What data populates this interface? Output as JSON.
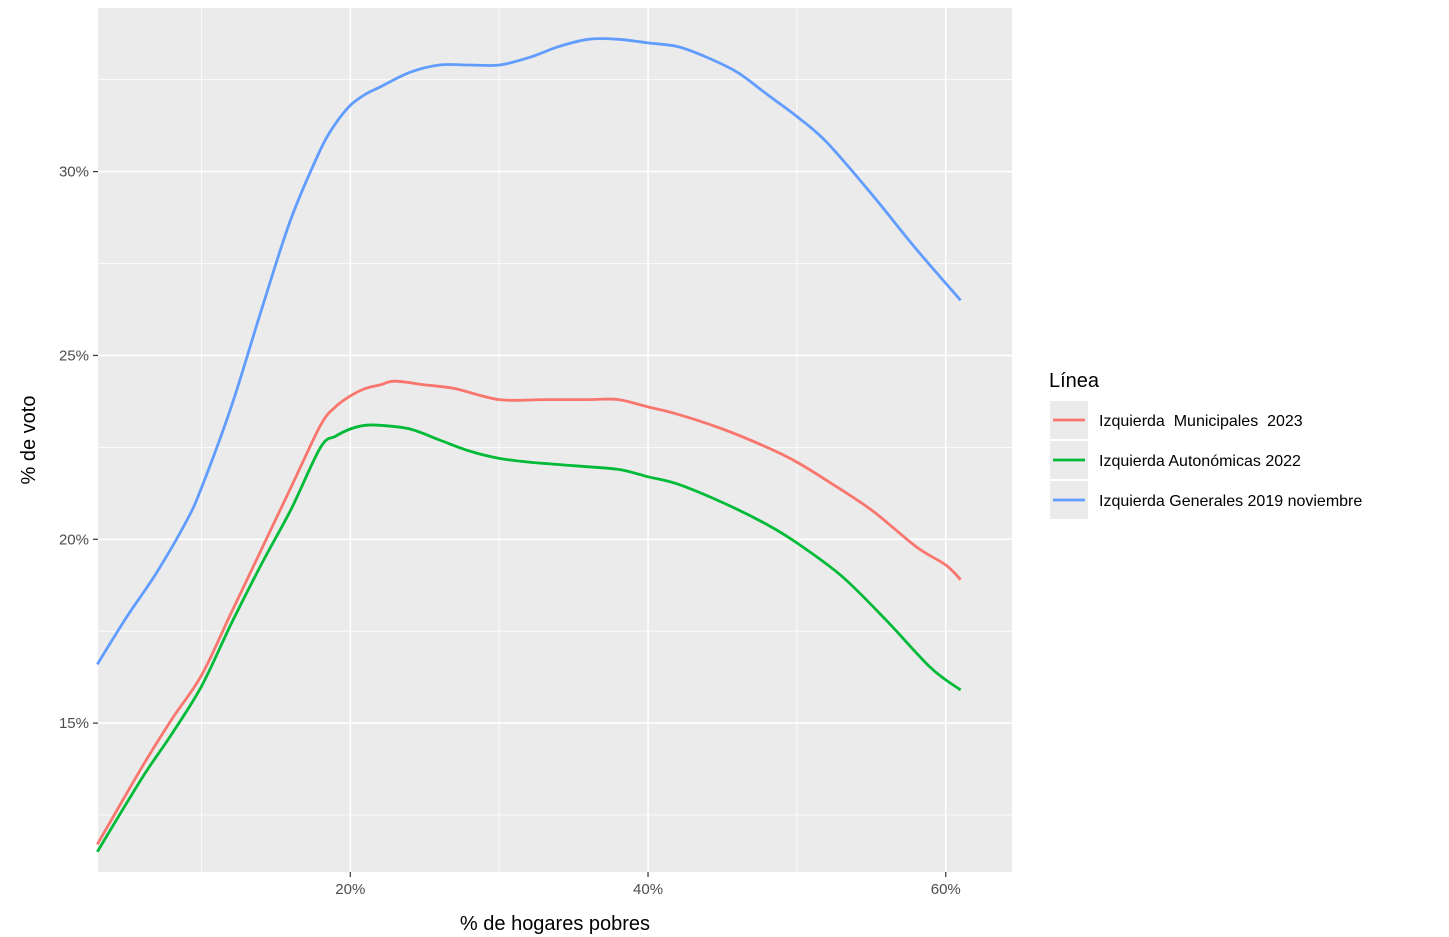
{
  "chart_data": {
    "type": "line",
    "xlabel": "% de hogares pobres",
    "ylabel": "% de voto",
    "xlim": [
      0.0305,
      0.6445
    ],
    "ylim": [
      0.1095,
      0.3445
    ],
    "x_ticks": [
      0.2,
      0.4,
      0.6
    ],
    "x_tick_labels": [
      "20%",
      "40%",
      "60%"
    ],
    "y_ticks": [
      0.15,
      0.2,
      0.25,
      0.3
    ],
    "y_tick_labels": [
      "15%",
      "20%",
      "25%",
      "30%"
    ],
    "grid": true,
    "panel_color": "#ebebeb",
    "legend": {
      "title": "Línea",
      "position": "right"
    },
    "series": [
      {
        "name": "Izquierda  Municipales  2023",
        "color": "#f8766d",
        "x": [
          0.03,
          0.06,
          0.08,
          0.1,
          0.12,
          0.14,
          0.16,
          0.18,
          0.19,
          0.2,
          0.21,
          0.22,
          0.23,
          0.25,
          0.27,
          0.3,
          0.33,
          0.36,
          0.38,
          0.4,
          0.42,
          0.45,
          0.48,
          0.5,
          0.52,
          0.55,
          0.58,
          0.6,
          0.61
        ],
        "values": [
          0.117,
          0.138,
          0.151,
          0.163,
          0.18,
          0.197,
          0.214,
          0.231,
          0.236,
          0.239,
          0.241,
          0.242,
          0.243,
          0.242,
          0.241,
          0.238,
          0.238,
          0.238,
          0.238,
          0.236,
          0.234,
          0.23,
          0.225,
          0.221,
          0.216,
          0.208,
          0.198,
          0.193,
          0.189
        ]
      },
      {
        "name": "Izquierda Autonómicas 2022",
        "color": "#00ba38",
        "x": [
          0.03,
          0.06,
          0.08,
          0.1,
          0.12,
          0.14,
          0.16,
          0.18,
          0.19,
          0.2,
          0.21,
          0.22,
          0.24,
          0.26,
          0.28,
          0.3,
          0.32,
          0.35,
          0.38,
          0.4,
          0.42,
          0.45,
          0.48,
          0.5,
          0.53,
          0.56,
          0.59,
          0.61
        ],
        "values": [
          0.115,
          0.135,
          0.147,
          0.16,
          0.177,
          0.193,
          0.208,
          0.225,
          0.228,
          0.23,
          0.231,
          0.231,
          0.23,
          0.227,
          0.224,
          0.222,
          0.221,
          0.22,
          0.219,
          0.217,
          0.215,
          0.21,
          0.204,
          0.199,
          0.19,
          0.178,
          0.165,
          0.159
        ]
      },
      {
        "name": "Izquierda Generales 2019 noviembre",
        "color": "#619cff",
        "x": [
          0.03,
          0.05,
          0.07,
          0.09,
          0.1,
          0.12,
          0.14,
          0.16,
          0.18,
          0.19,
          0.2,
          0.21,
          0.22,
          0.24,
          0.26,
          0.28,
          0.3,
          0.32,
          0.34,
          0.36,
          0.38,
          0.4,
          0.42,
          0.44,
          0.46,
          0.48,
          0.5,
          0.52,
          0.55,
          0.58,
          0.61
        ],
        "values": [
          0.166,
          0.179,
          0.191,
          0.205,
          0.214,
          0.236,
          0.262,
          0.287,
          0.306,
          0.313,
          0.318,
          0.321,
          0.323,
          0.327,
          0.329,
          0.329,
          0.329,
          0.331,
          0.334,
          0.336,
          0.336,
          0.335,
          0.334,
          0.331,
          0.327,
          0.321,
          0.315,
          0.308,
          0.294,
          0.279,
          0.265
        ]
      }
    ]
  }
}
